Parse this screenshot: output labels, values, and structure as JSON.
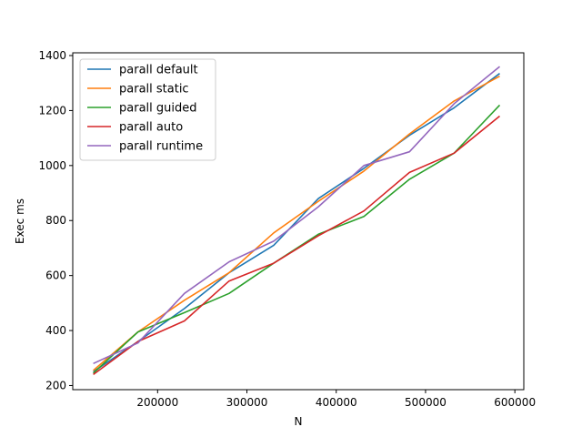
{
  "chart_data": {
    "type": "line",
    "title": "",
    "xlabel": "N",
    "ylabel": "Exec ms",
    "xlim": [
      105000,
      610000
    ],
    "ylim": [
      185,
      1410
    ],
    "xticks": [
      200000,
      300000,
      400000,
      500000,
      600000
    ],
    "yticks": [
      200,
      400,
      600,
      800,
      1000,
      1200,
      1400
    ],
    "grid": false,
    "legend_position": "top-left",
    "x": [
      128000,
      178000,
      230000,
      280000,
      330000,
      380000,
      431000,
      482000,
      532000,
      583000
    ],
    "series": [
      {
        "name": "parall default",
        "color": "#1f77b4",
        "values": [
          250,
          360,
          480,
          610,
          710,
          880,
          990,
          1110,
          1210,
          1335
        ]
      },
      {
        "name": "parall static",
        "color": "#ff7f0e",
        "values": [
          255,
          395,
          510,
          610,
          755,
          870,
          980,
          1115,
          1235,
          1325
        ]
      },
      {
        "name": "parall guided",
        "color": "#2ca02c",
        "values": [
          245,
          395,
          465,
          535,
          645,
          750,
          815,
          950,
          1045,
          1220
        ]
      },
      {
        "name": "parall auto",
        "color": "#d62728",
        "values": [
          240,
          360,
          435,
          580,
          645,
          745,
          835,
          975,
          1045,
          1180
        ]
      },
      {
        "name": "parall runtime",
        "color": "#9467bd",
        "values": [
          280,
          355,
          535,
          650,
          725,
          850,
          1000,
          1050,
          1225,
          1360
        ]
      }
    ]
  }
}
